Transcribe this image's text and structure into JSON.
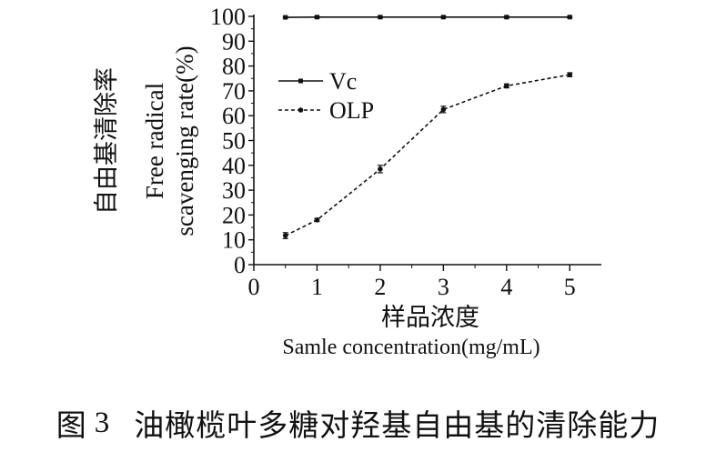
{
  "chart_data": {
    "type": "line",
    "x": [
      0.5,
      1,
      2,
      3,
      4,
      5
    ],
    "series": [
      {
        "name": "Vc",
        "values": [
          99.6,
          99.7,
          99.7,
          99.7,
          99.7,
          99.7
        ],
        "errors": [
          0.3,
          0.3,
          0.3,
          0.3,
          0.3,
          0.3
        ],
        "line_style": "solid",
        "marker": "square"
      },
      {
        "name": "OLP",
        "values": [
          11.7,
          18.0,
          38.5,
          62.5,
          72.0,
          76.5
        ],
        "errors": [
          1.2,
          0.6,
          1.5,
          1.3,
          0.8,
          0.8
        ],
        "line_style": "dashed",
        "marker": "circle"
      }
    ],
    "xlim": [
      0,
      5.5
    ],
    "ylim": [
      0,
      100
    ],
    "xticks": [
      0,
      1,
      2,
      3,
      4,
      5
    ],
    "yticks": [
      0,
      10,
      20,
      30,
      40,
      50,
      60,
      70,
      80,
      90,
      100
    ],
    "xlabel_zh": "样品浓度",
    "xlabel_en": "Samle concentration(mg/mL)",
    "ylabel_zh": "自由基清除率",
    "ylabel_en_line1": "Free radical",
    "ylabel_en_line2": "scavenging rate(%)",
    "legend_position": "upper-left",
    "grid": false
  },
  "caption": {
    "label": "图",
    "number": "3",
    "text": "油橄榄叶多糖对羟基自由基的清除能力"
  }
}
